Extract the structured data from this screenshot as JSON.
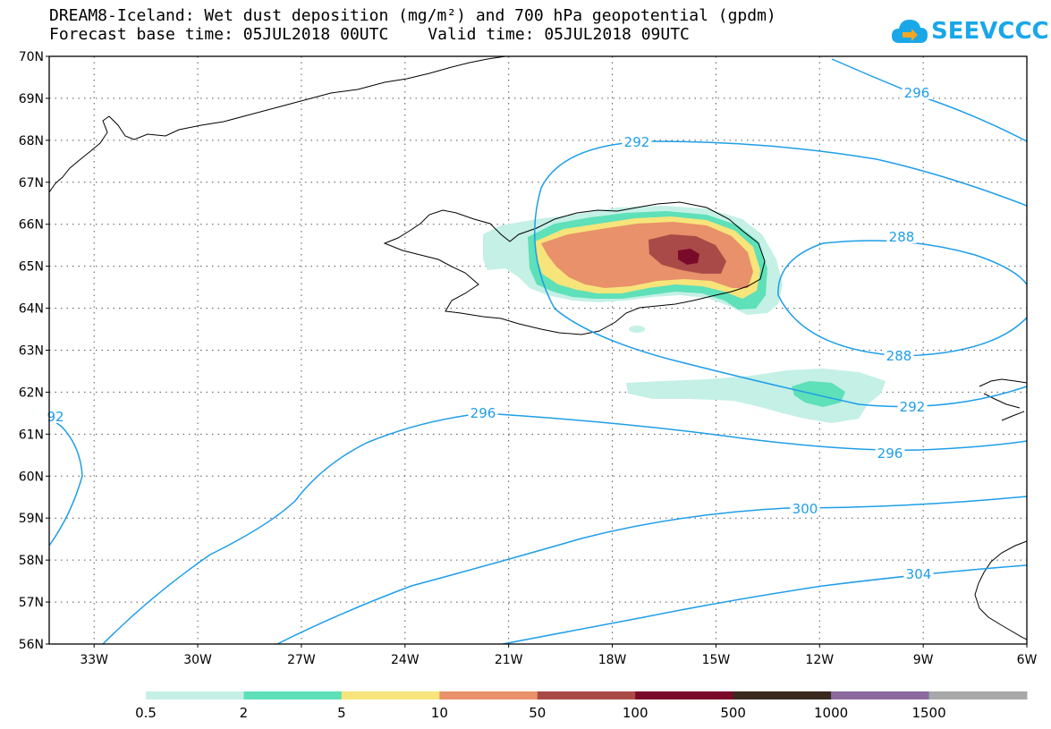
{
  "title_line1": "DREAM8-Iceland: Wet dust deposition (mg/m²) and 700 hPa geopotential (gpdm)",
  "forecast_base": "Forecast base time: 05JUL2018 00UTC",
  "valid_time": "Valid time: 05JUL2018 09UTC",
  "logo": {
    "text": "SEEVCCC",
    "icon": "cloud-icon",
    "color": "#1aa7e8"
  },
  "axes": {
    "lat_labels": [
      "70N",
      "69N",
      "68N",
      "67N",
      "66N",
      "65N",
      "64N",
      "63N",
      "62N",
      "61N",
      "60N",
      "59N",
      "58N",
      "57N",
      "56N"
    ],
    "lat_values": [
      70,
      69,
      68,
      67,
      66,
      65,
      64,
      63,
      62,
      61,
      60,
      59,
      58,
      57,
      56
    ],
    "lon_labels": [
      "33W",
      "30W",
      "27W",
      "24W",
      "21W",
      "18W",
      "15W",
      "12W",
      "9W",
      "6W"
    ],
    "lon_values": [
      -33,
      -30,
      -27,
      -24,
      -21,
      -18,
      -15,
      -12,
      -9,
      -6
    ],
    "lon_range": [
      -34.3,
      -6
    ],
    "lat_range": [
      56,
      70
    ],
    "grid": "dotted"
  },
  "contours": {
    "color": "#1e9ee8",
    "labels": [
      "296",
      "292",
      "288",
      "288",
      "292",
      "92",
      "296",
      "296",
      "300",
      "304"
    ]
  },
  "colorbar": {
    "levels": [
      "0.5",
      "2",
      "5",
      "10",
      "50",
      "100",
      "500",
      "1000",
      "1500"
    ],
    "colors": [
      "#c4f0e6",
      "#5ee0b8",
      "#f7e47a",
      "#e8916a",
      "#a94a48",
      "#7a0a2a",
      "#3a2a1e",
      "#8c6aa0",
      "#a8a8a8"
    ]
  }
}
